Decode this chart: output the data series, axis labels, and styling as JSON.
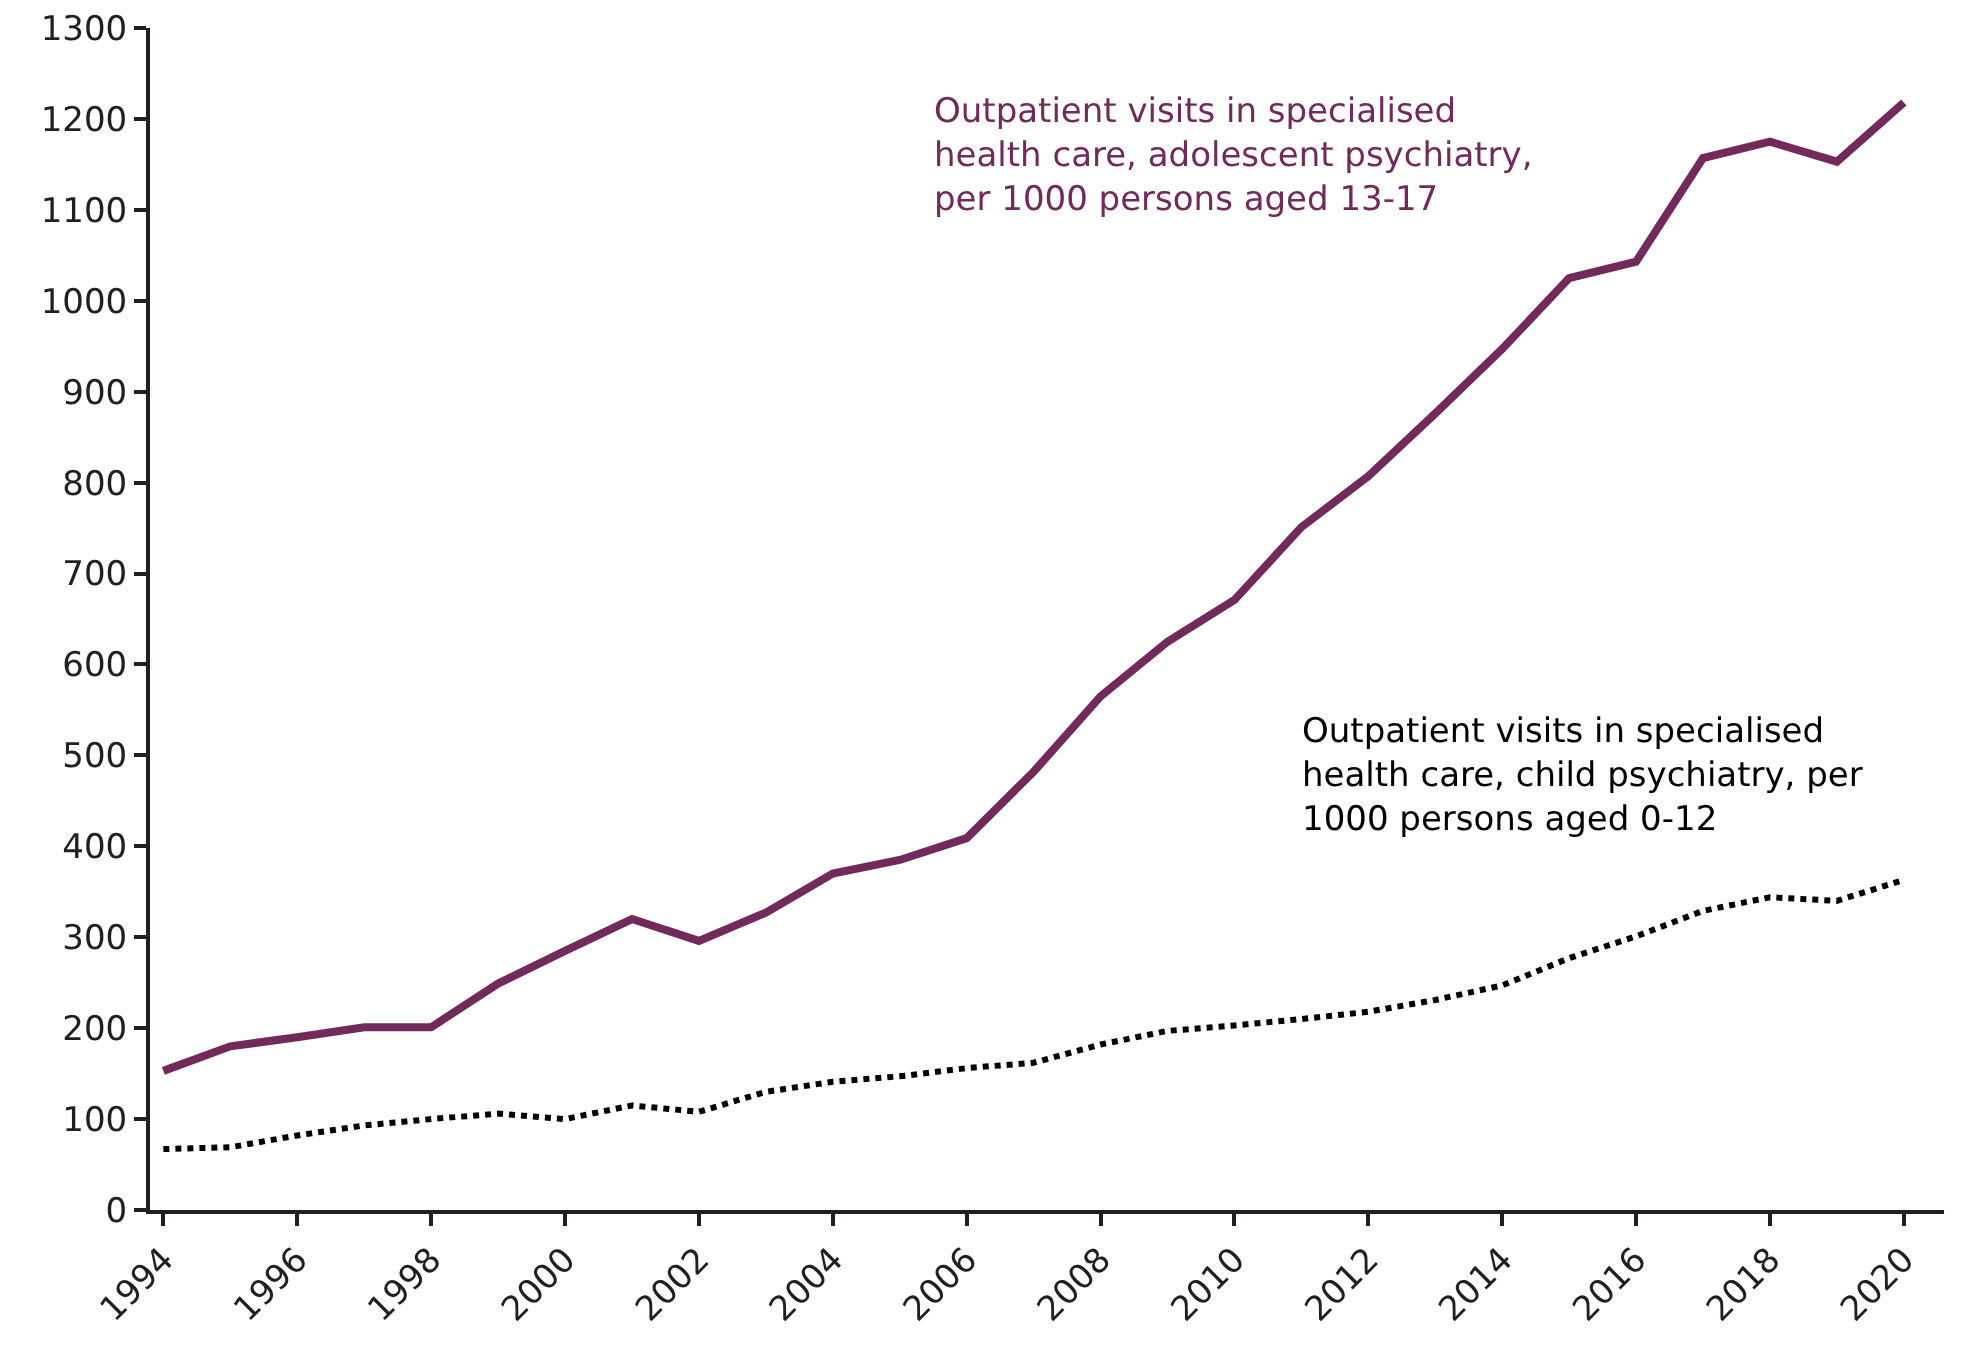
{
  "chart_data": {
    "type": "line",
    "x": [
      1994,
      1995,
      1996,
      1997,
      1998,
      1999,
      2000,
      2001,
      2002,
      2003,
      2004,
      2005,
      2006,
      2007,
      2008,
      2009,
      2010,
      2011,
      2012,
      2013,
      2014,
      2015,
      2016,
      2017,
      2018,
      2019,
      2020
    ],
    "series": [
      {
        "name": "Outpatient visits in specialised health care, adolescent psychiatry, per 1000 persons aged 13-17",
        "color": "#722a5a",
        "line_style": "solid",
        "values": [
          153,
          180,
          190,
          201,
          201,
          249,
          285,
          320,
          296,
          327,
          370,
          385,
          409,
          482,
          565,
          625,
          671,
          751,
          807,
          876,
          947,
          1025,
          1043,
          1157,
          1175,
          1153,
          1218
        ]
      },
      {
        "name": "Outpatient visits in specialised health care, child psychiatry, per 1000 persons aged 0-12",
        "color": "#000000",
        "line_style": "dotted",
        "values": [
          67,
          69,
          82,
          93,
          100,
          106,
          100,
          115,
          108,
          130,
          141,
          147,
          156,
          162,
          182,
          197,
          203,
          210,
          218,
          231,
          247,
          277,
          301,
          329,
          344,
          340,
          363
        ]
      }
    ],
    "xlim": [
      1993.8,
      2020.6
    ],
    "xticks": [
      1994,
      1996,
      1998,
      2000,
      2002,
      2004,
      2006,
      2008,
      2010,
      2012,
      2014,
      2016,
      2018,
      2020
    ],
    "ylim": [
      0,
      1300
    ],
    "yticks": [
      0,
      100,
      200,
      300,
      400,
      500,
      600,
      700,
      800,
      900,
      1000,
      1100,
      1200,
      1300
    ],
    "grid": false,
    "legend": false
  }
}
